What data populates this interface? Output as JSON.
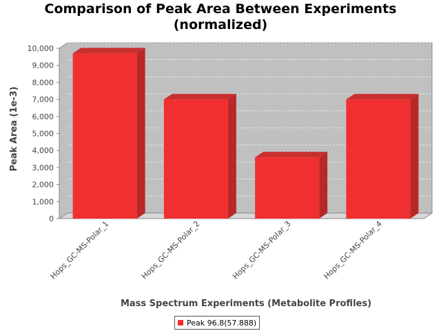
{
  "chart_data": {
    "type": "bar",
    "title_line1": "Comparison of Peak Area Between Experiments",
    "title_line2": "(normalized)",
    "xlabel": "Mass Spectrum Experiments (Metabolite Profiles)",
    "ylabel": "Peak Area (1e-3)",
    "categories": [
      "Hops_GC-MS-Polar_1",
      "Hops_GC-MS-Polar_2",
      "Hops_GC-MS-Polar_3",
      "Hops_GC-MS-Polar_4"
    ],
    "series": [
      {
        "name": "Peak 96.8(57.888)",
        "values": [
          9700,
          7000,
          3600,
          7000
        ]
      }
    ],
    "ylim": [
      0,
      10000
    ],
    "yticks": [
      0,
      1000,
      2000,
      3000,
      4000,
      5000,
      6000,
      7000,
      8000,
      9000,
      10000
    ],
    "ytick_labels": [
      "0",
      "1,000",
      "2,000",
      "3,000",
      "4,000",
      "5,000",
      "6,000",
      "7,000",
      "8,000",
      "9,000",
      "10,000"
    ],
    "grid": true,
    "legend_position": "bottom-center",
    "colors": {
      "bar": "#f03030",
      "bar_side": "#b82828",
      "bar_top": "#c83030",
      "plot_background": "#c0c0c0",
      "plot_wall": "#d8d8d8"
    }
  }
}
